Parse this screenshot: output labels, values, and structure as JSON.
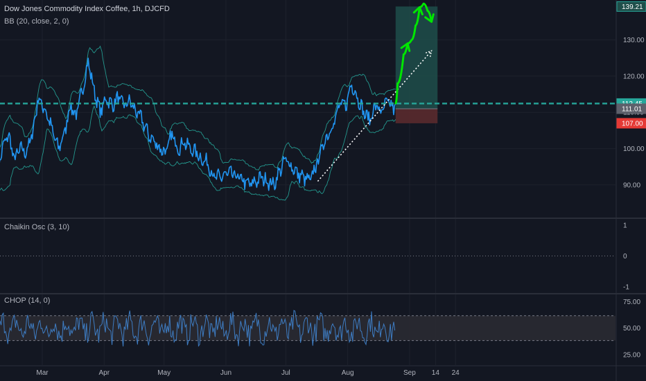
{
  "chart_data": {
    "type": "line",
    "title": "Dow Jones Commodity Index Coffee, 1h, DJCFD",
    "indicator_label": "BB (20, close, 2, 0)",
    "x_labels": [
      "Mar",
      "Apr",
      "May",
      "Jun",
      "Jul",
      "Aug",
      "Sep",
      "14",
      "24"
    ],
    "price_axis": {
      "ticks": [
        "130.00",
        "120.00",
        "110.00",
        "100.00",
        "90.00"
      ],
      "tick_values": [
        130,
        120,
        110,
        100,
        90
      ],
      "ylim": [
        81,
        141
      ]
    },
    "price_tags": {
      "target": "139.21",
      "current": "112.45",
      "entry": "111.01",
      "stop": "107.00"
    },
    "tag_values": {
      "target": 139.21,
      "current": 112.45,
      "entry": 111.01,
      "stop": 107.0
    },
    "price_series": {
      "name": "DJCFD",
      "color": "#2196f3",
      "points": [
        [
          "Feb 07",
          92
        ],
        [
          "Feb 10",
          100
        ],
        [
          "Feb 13",
          104
        ],
        [
          "Feb 16",
          97
        ],
        [
          "Feb 19",
          100
        ],
        [
          "Feb 22",
          99
        ],
        [
          "Feb 25",
          104
        ],
        [
          "Feb 28",
          114
        ],
        [
          "Mar 03",
          110
        ],
        [
          "Mar 06",
          105
        ],
        [
          "Mar 09",
          100
        ],
        [
          "Mar 12",
          104
        ],
        [
          "Mar 15",
          112
        ],
        [
          "Mar 18",
          109
        ],
        [
          "Mar 21",
          116
        ],
        [
          "Mar 24",
          124
        ],
        [
          "Mar 27",
          116
        ],
        [
          "Mar 30",
          110
        ],
        [
          "Apr 02",
          114
        ],
        [
          "Apr 05",
          112
        ],
        [
          "Apr 08",
          114
        ],
        [
          "Apr 11",
          112
        ],
        [
          "Apr 14",
          113
        ],
        [
          "Apr 17",
          110
        ],
        [
          "Apr 20",
          108
        ],
        [
          "Apr 23",
          104
        ],
        [
          "Apr 26",
          102
        ],
        [
          "Apr 29",
          100
        ],
        [
          "May 02",
          99
        ],
        [
          "May 05",
          104
        ],
        [
          "May 08",
          100
        ],
        [
          "May 11",
          102
        ],
        [
          "May 14",
          100
        ],
        [
          "May 17",
          99
        ],
        [
          "May 20",
          97
        ],
        [
          "May 23",
          96
        ],
        [
          "May 26",
          92
        ],
        [
          "May 29",
          92
        ],
        [
          "Jun 01",
          93
        ],
        [
          "Jun 04",
          93
        ],
        [
          "Jun 07",
          92
        ],
        [
          "Jun 10",
          91
        ],
        [
          "Jun 13",
          90
        ],
        [
          "Jun 16",
          91
        ],
        [
          "Jun 19",
          92
        ],
        [
          "Jun 22",
          91
        ],
        [
          "Jun 25",
          90
        ],
        [
          "Jun 28",
          94
        ],
        [
          "Jul 01",
          97
        ],
        [
          "Jul 04",
          95
        ],
        [
          "Jul 07",
          93
        ],
        [
          "Jul 10",
          92
        ],
        [
          "Jul 13",
          91
        ],
        [
          "Jul 16",
          95
        ],
        [
          "Jul 19",
          100
        ],
        [
          "Jul 22",
          104
        ],
        [
          "Jul 25",
          107
        ],
        [
          "Jul 28",
          112
        ],
        [
          "Jul 31",
          112
        ],
        [
          "Aug 03",
          118
        ],
        [
          "Aug 06",
          114
        ],
        [
          "Aug 09",
          110
        ],
        [
          "Aug 12",
          108
        ],
        [
          "Aug 15",
          112
        ],
        [
          "Aug 18",
          110
        ],
        [
          "Aug 21",
          113
        ],
        [
          "Aug 24",
          111
        ],
        [
          "Aug 25",
          112.45
        ]
      ]
    },
    "bollinger_color": "#26a69a",
    "trade_zone": {
      "start": "Aug 25",
      "end": "Sep 15",
      "target": 139.21,
      "entry": 111.01,
      "stop": 107.0,
      "profit_color": "#1f4e4a",
      "loss_color": "#5a2a2e"
    },
    "current_line_value": 112.45,
    "current_line_color": "#26a69a",
    "projection": {
      "color": "#ffffff",
      "points": [
        [
          "Jul 17",
          91
        ],
        [
          "Sep 12",
          127
        ]
      ]
    },
    "forecast_path": {
      "color": "#00e600",
      "points": [
        [
          "Aug 25",
          112.5
        ],
        [
          "Aug 26",
          118
        ],
        [
          "Aug 29",
          126
        ],
        [
          "Aug 31",
          129
        ],
        [
          "Sep 02",
          130
        ],
        [
          "Sep 04",
          134
        ],
        [
          "Sep 06",
          139
        ],
        [
          "Sep 08",
          140
        ],
        [
          "Sep 10",
          138
        ],
        [
          "Sep 12",
          135
        ]
      ]
    },
    "chaikin": {
      "label": "Chaikin Osc (3, 10)",
      "ticks": [
        "1",
        "0",
        "-1"
      ],
      "tick_values": [
        1,
        0,
        -1
      ],
      "ylim": [
        -1.2,
        1.2
      ]
    },
    "chop": {
      "label": "CHOP (14, 0)",
      "ticks": [
        "75.00",
        "50.00",
        "25.00"
      ],
      "tick_values": [
        75,
        50,
        25
      ],
      "band": [
        38.2,
        61.8
      ],
      "ylim": [
        15,
        82
      ],
      "color": "#3e7dc4",
      "band_color": "#2a2a32"
    }
  }
}
